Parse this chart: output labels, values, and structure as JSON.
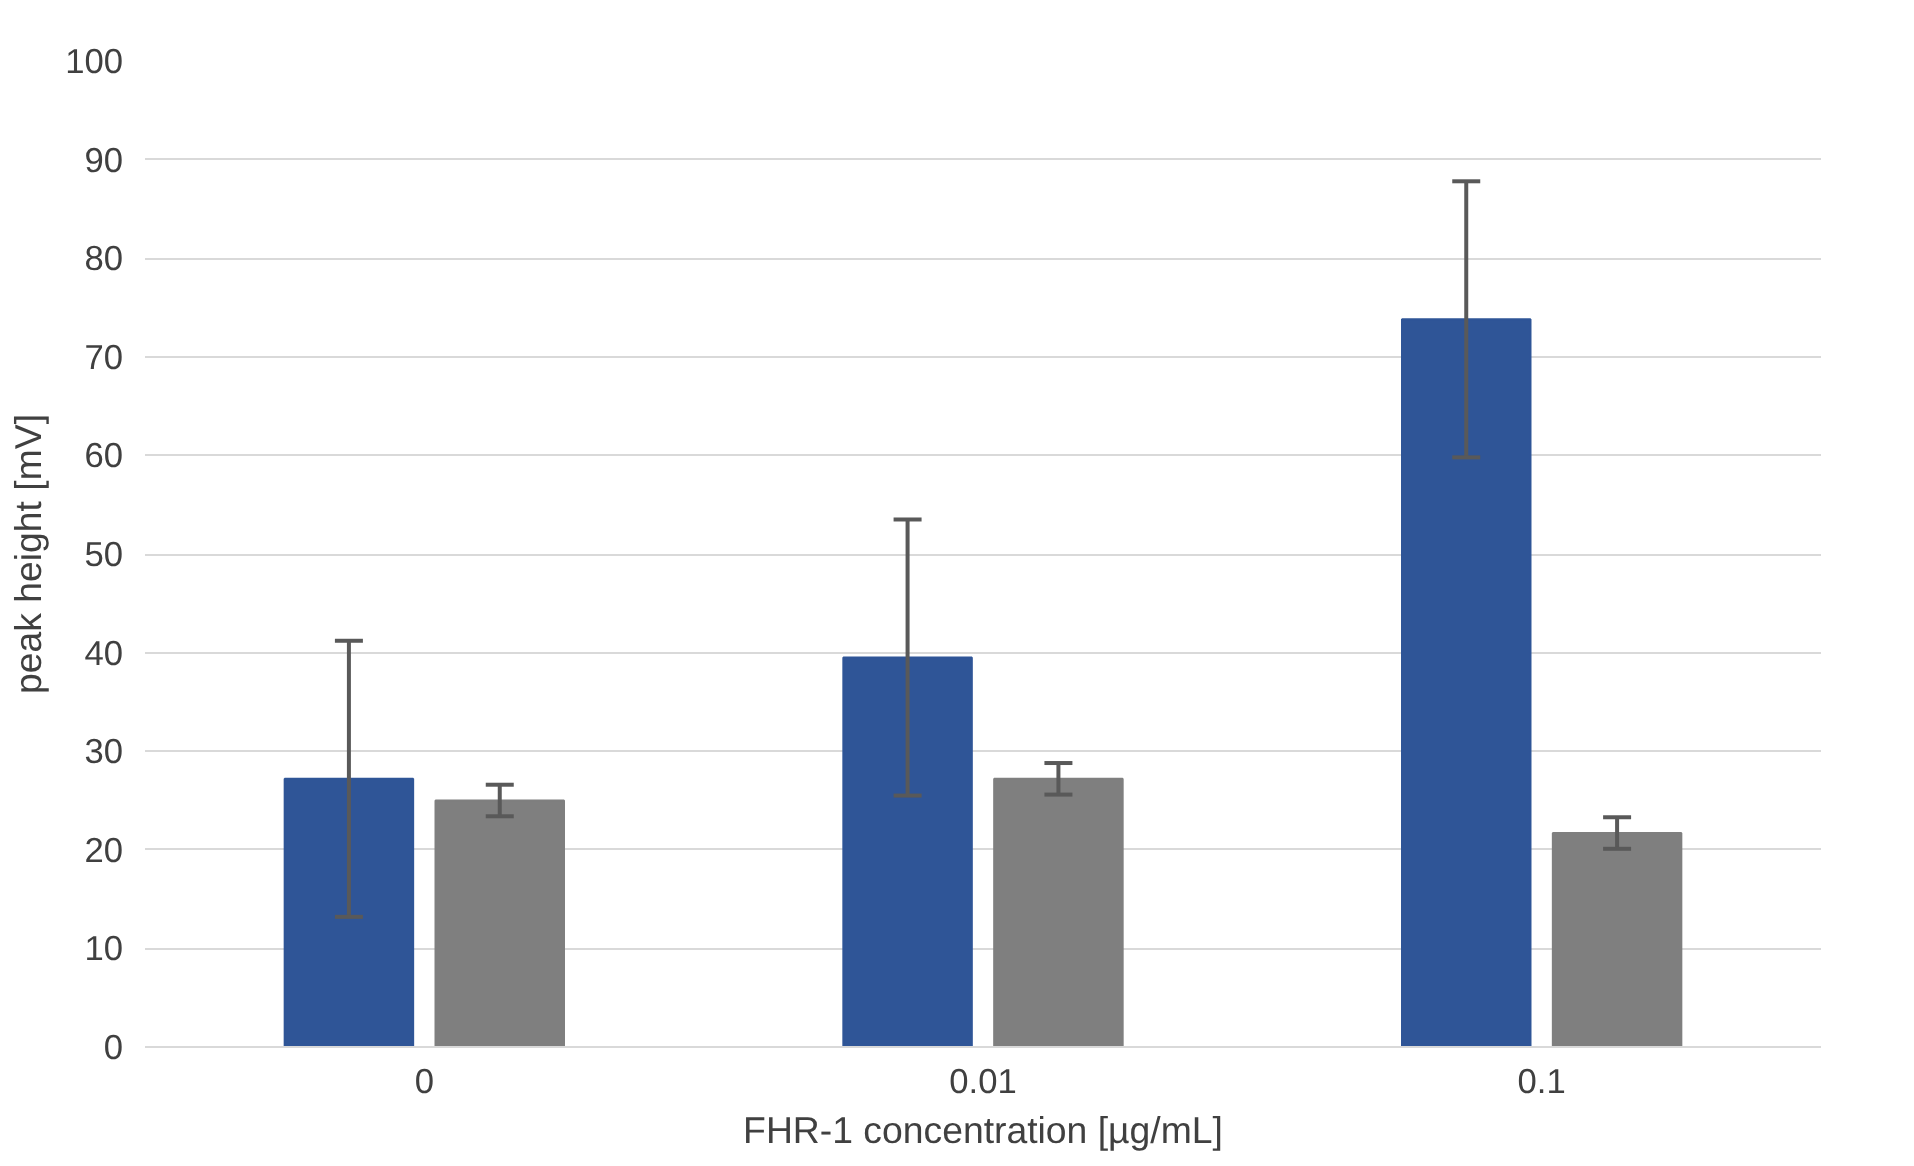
{
  "chart_data": {
    "type": "bar",
    "xlabel": "FHR-1 concentration [µg/mL]",
    "ylabel": "peak height [mV]",
    "categories": [
      "0",
      "0.01",
      "0.1"
    ],
    "series": [
      {
        "color": "#2f5597",
        "values": [
          27.2,
          39.5,
          73.8
        ],
        "errors": [
          14,
          14,
          14
        ]
      },
      {
        "color": "#7f7f7f",
        "values": [
          25.0,
          27.2,
          21.7
        ],
        "errors": [
          1.6,
          1.6,
          1.6
        ]
      }
    ],
    "ylim": [
      0,
      100
    ],
    "yticks": [
      0,
      10,
      20,
      30,
      40,
      50,
      60,
      70,
      80,
      90,
      100
    ],
    "grid": "y"
  }
}
